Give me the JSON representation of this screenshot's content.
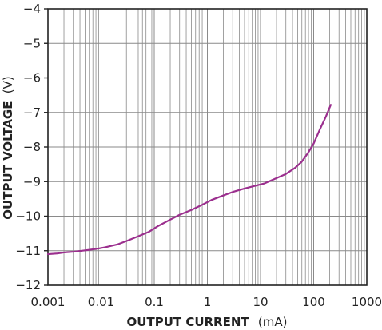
{
  "chart_data": {
    "type": "line",
    "xlabel": "OUTPUT CURRENT",
    "xlabel_unit": "(mA)",
    "ylabel": "OUTPUT VOLTAGE",
    "ylabel_unit": "(V)",
    "x_scale": "log",
    "xlim": [
      0.001,
      1000
    ],
    "ylim": [
      -12,
      -4
    ],
    "x_ticks": [
      0.001,
      0.01,
      0.1,
      1,
      10,
      100,
      1000
    ],
    "x_tick_labels": [
      "0.001",
      "0.01",
      "0.1",
      "1",
      "10",
      "100",
      "1000"
    ],
    "y_ticks": [
      -4,
      -5,
      -6,
      -7,
      -8,
      -9,
      -10,
      -11,
      -12
    ],
    "y_tick_labels": [
      "−4",
      "−5",
      "−6",
      "−7",
      "−8",
      "−9",
      "−10",
      "−11",
      "−12"
    ],
    "grid": true,
    "line_color": "#9b2f8e",
    "grid_color": "#8a8a8a",
    "series": [
      {
        "x": [
          0.001,
          0.0015,
          0.002,
          0.003,
          0.005,
          0.008,
          0.012,
          0.02,
          0.03,
          0.05,
          0.08,
          0.12,
          0.2,
          0.3,
          0.5,
          0.8,
          1.2,
          2,
          3,
          5,
          8,
          12,
          20,
          30,
          45,
          60,
          80,
          100,
          130,
          170,
          210
        ],
        "y": [
          -11.1,
          -11.08,
          -11.05,
          -11.03,
          -10.99,
          -10.95,
          -10.9,
          -10.82,
          -10.72,
          -10.58,
          -10.45,
          -10.28,
          -10.1,
          -9.96,
          -9.82,
          -9.67,
          -9.53,
          -9.4,
          -9.3,
          -9.2,
          -9.12,
          -9.05,
          -8.9,
          -8.78,
          -8.6,
          -8.42,
          -8.15,
          -7.9,
          -7.5,
          -7.12,
          -6.78
        ]
      }
    ]
  }
}
